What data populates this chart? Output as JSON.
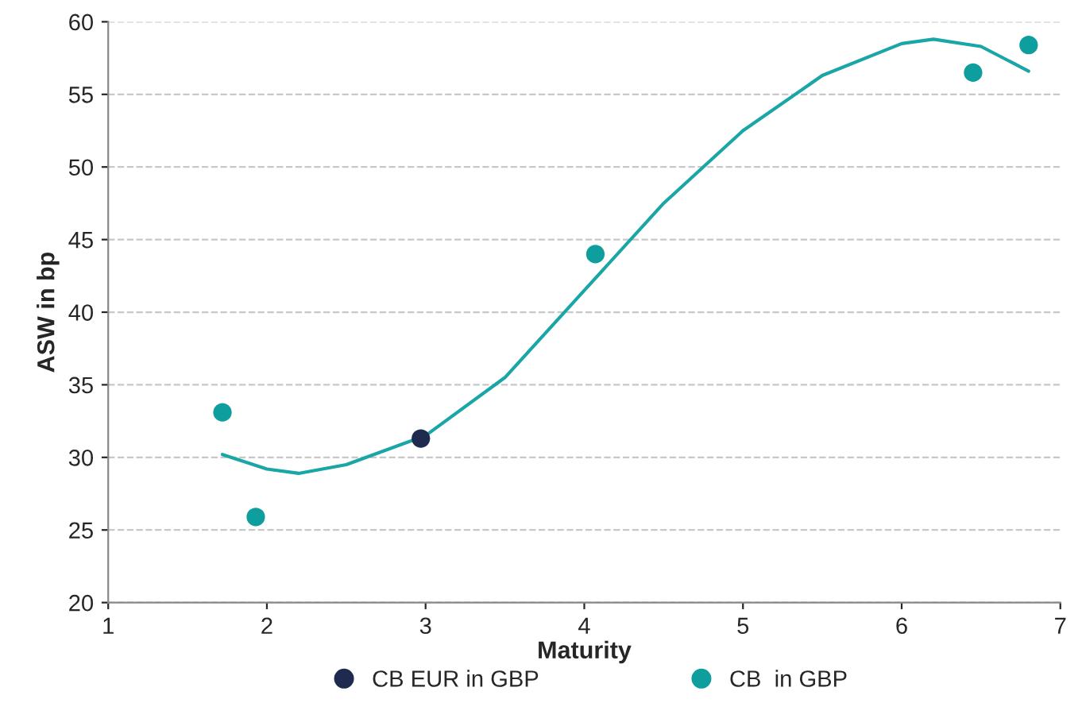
{
  "chart_data": {
    "type": "scatter",
    "xlabel": "Maturity",
    "ylabel": "ASW in bp",
    "series": [
      {
        "name": "CB EUR in GBP",
        "color": "#1f2a4f",
        "x": [
          2.97
        ],
        "values": [
          31.3
        ]
      },
      {
        "name": "CB  in GBP",
        "color": "#0e9e9e",
        "x": [
          1.72,
          1.93,
          4.07,
          6.45,
          6.8
        ],
        "values": [
          33.1,
          25.9,
          44.0,
          56.5,
          58.4
        ]
      },
      {
        "type": "line",
        "marker": "none",
        "color": "#1aa6a6",
        "x": [
          1.72,
          2.0,
          2.2,
          2.5,
          3.0,
          3.5,
          4.0,
          4.5,
          5.0,
          5.5,
          6.0,
          6.2,
          6.5,
          6.8
        ],
        "values": [
          30.2,
          29.2,
          28.9,
          29.5,
          31.5,
          35.5,
          41.5,
          47.5,
          52.5,
          56.3,
          58.5,
          58.8,
          58.3,
          56.6
        ]
      }
    ],
    "xlim": [
      1,
      7
    ],
    "xticks": [
      1,
      2,
      3,
      4,
      5,
      6,
      7
    ],
    "ylim": [
      20,
      60
    ],
    "yticks": [
      20,
      25,
      30,
      35,
      40,
      45,
      50,
      55,
      60
    ],
    "grid": "y",
    "legend": "bottom",
    "marker": "circle"
  }
}
